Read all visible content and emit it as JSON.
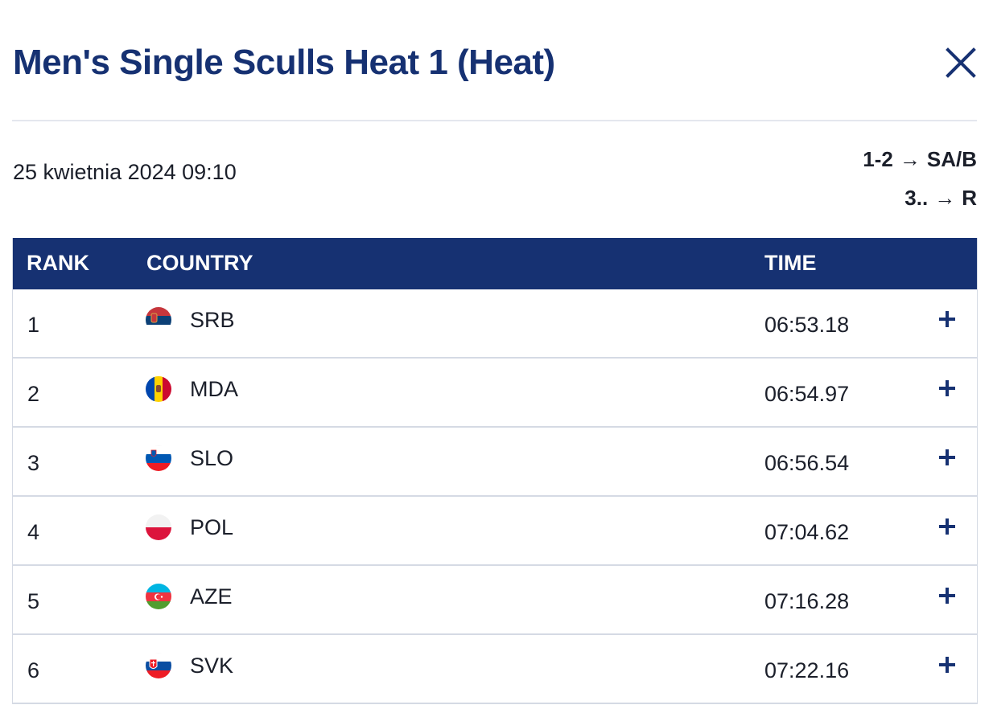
{
  "header": {
    "title": "Men's Single Sculls Heat 1 (Heat)",
    "close_icon": "close-icon"
  },
  "info": {
    "date": "25 kwietnia 2024 09:10",
    "progression": [
      {
        "places": "1-2",
        "arrow": "→",
        "target": "SA/B"
      },
      {
        "places": "3..",
        "arrow": "→",
        "target": "R"
      }
    ]
  },
  "table": {
    "headers": {
      "rank": "RANK",
      "country": "COUNTRY",
      "time": "TIME"
    },
    "rows": [
      {
        "rank": "1",
        "country": "SRB",
        "time": "06:53.18",
        "flag": "flag-serbia-icon"
      },
      {
        "rank": "2",
        "country": "MDA",
        "time": "06:54.97",
        "flag": "flag-moldova-icon"
      },
      {
        "rank": "3",
        "country": "SLO",
        "time": "06:56.54",
        "flag": "flag-slovenia-icon"
      },
      {
        "rank": "4",
        "country": "POL",
        "time": "07:04.62",
        "flag": "flag-poland-icon"
      },
      {
        "rank": "5",
        "country": "AZE",
        "time": "07:16.28",
        "flag": "flag-azerbaijan-icon"
      },
      {
        "rank": "6",
        "country": "SVK",
        "time": "07:22.16",
        "flag": "flag-slovakia-icon"
      }
    ]
  },
  "colors": {
    "accent": "#163172",
    "text": "#1b1f2a",
    "row_border": "#d5dae4"
  }
}
